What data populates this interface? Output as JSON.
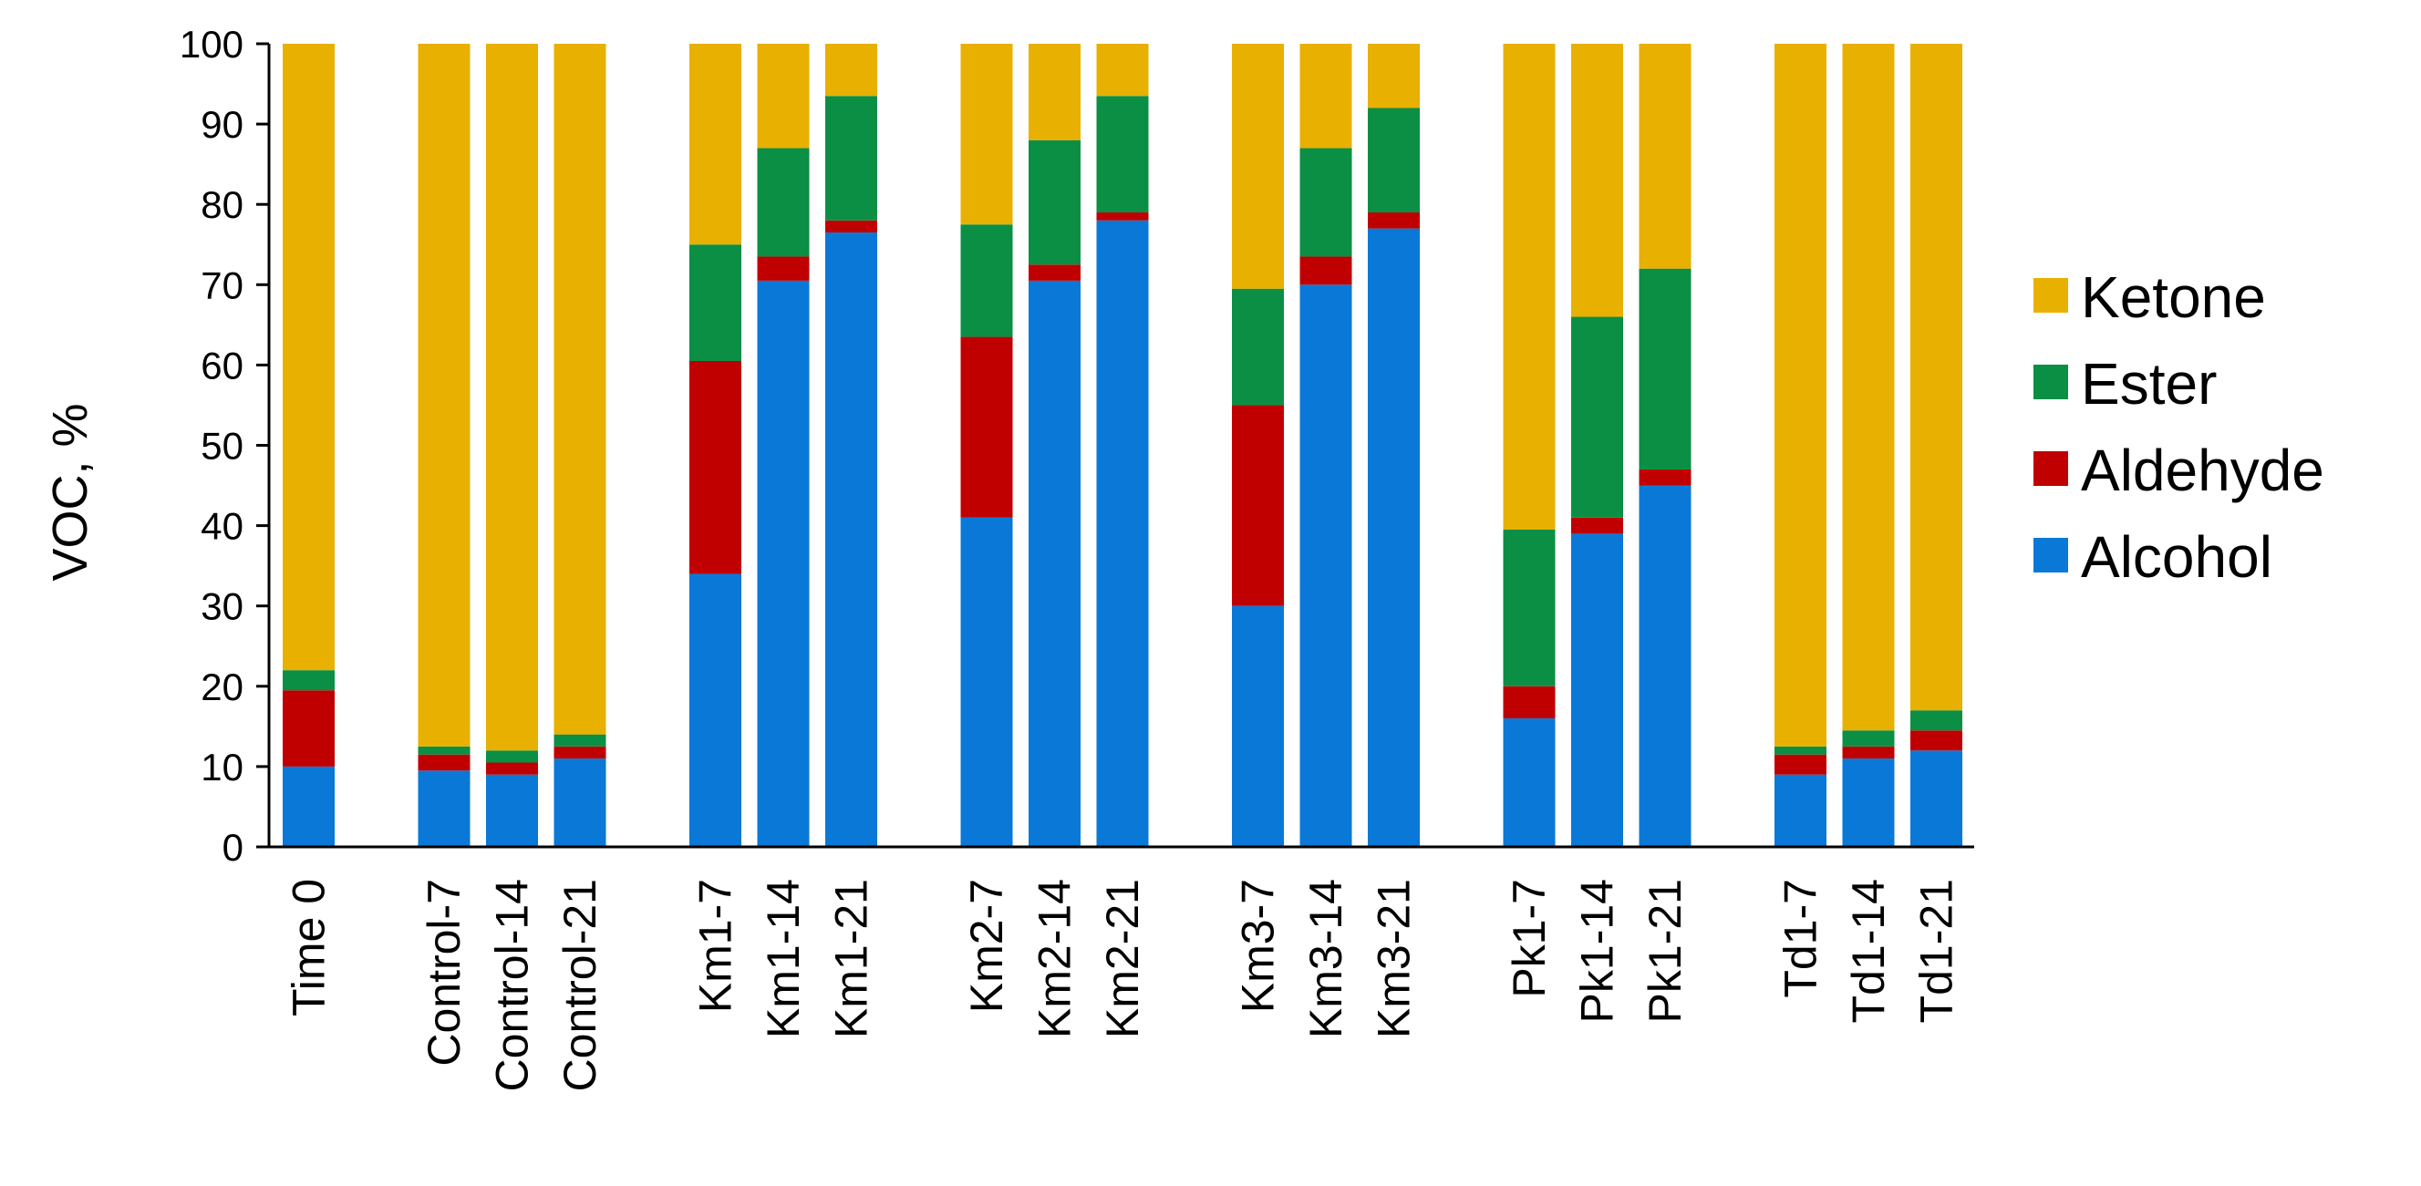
{
  "chart_data": {
    "type": "bar",
    "stacked": true,
    "title": "",
    "xlabel": "",
    "ylabel": "VOC, %",
    "ylim": [
      0,
      100
    ],
    "yticks": [
      0,
      10,
      20,
      30,
      40,
      50,
      60,
      70,
      80,
      90,
      100
    ],
    "grid": false,
    "legend_position": "right",
    "categories": [
      "Time 0",
      "Control-7",
      "Control-14",
      "Control-21",
      "Km1-7",
      "Km1-14",
      "Km1-21",
      "Km2-7",
      "Km2-14",
      "Km2-21",
      "Km3-7",
      "Km3-14",
      "Km3-21",
      "Pk1-7",
      "Pk1-14",
      "Pk1-21",
      "Td1-7",
      "Td1-14",
      "Td1-21"
    ],
    "groups": [
      1,
      3,
      3,
      3,
      3,
      3,
      3
    ],
    "series": [
      {
        "name": "Alcohol",
        "color": "#0A78D7",
        "values": [
          10,
          9.5,
          9,
          11,
          34,
          70.5,
          76.5,
          41,
          70.5,
          78,
          30,
          70,
          77,
          16,
          39,
          45,
          9,
          11,
          12
        ]
      },
      {
        "name": "Aldehyde",
        "color": "#C00000",
        "values": [
          9.5,
          2,
          1.5,
          1.5,
          26.5,
          3,
          1.5,
          22.5,
          2,
          1,
          25,
          3.5,
          2,
          4,
          2,
          2,
          2.5,
          1.5,
          2.5
        ]
      },
      {
        "name": "Ester",
        "color": "#0A8F45",
        "values": [
          2.5,
          1,
          1.5,
          1.5,
          14.5,
          13.5,
          15.5,
          14,
          15.5,
          14.5,
          14.5,
          13.5,
          13,
          19.5,
          25,
          25,
          1,
          2,
          2.5
        ]
      },
      {
        "name": "Ketone",
        "color": "#E8B000",
        "values": [
          78,
          87.5,
          88,
          86,
          25,
          13,
          6.5,
          22.5,
          12,
          6.5,
          30.5,
          13,
          8,
          60.5,
          34,
          28,
          87.5,
          85.5,
          83
        ]
      }
    ],
    "legend_order": [
      "Ketone",
      "Ester",
      "Aldehyde",
      "Alcohol"
    ]
  }
}
